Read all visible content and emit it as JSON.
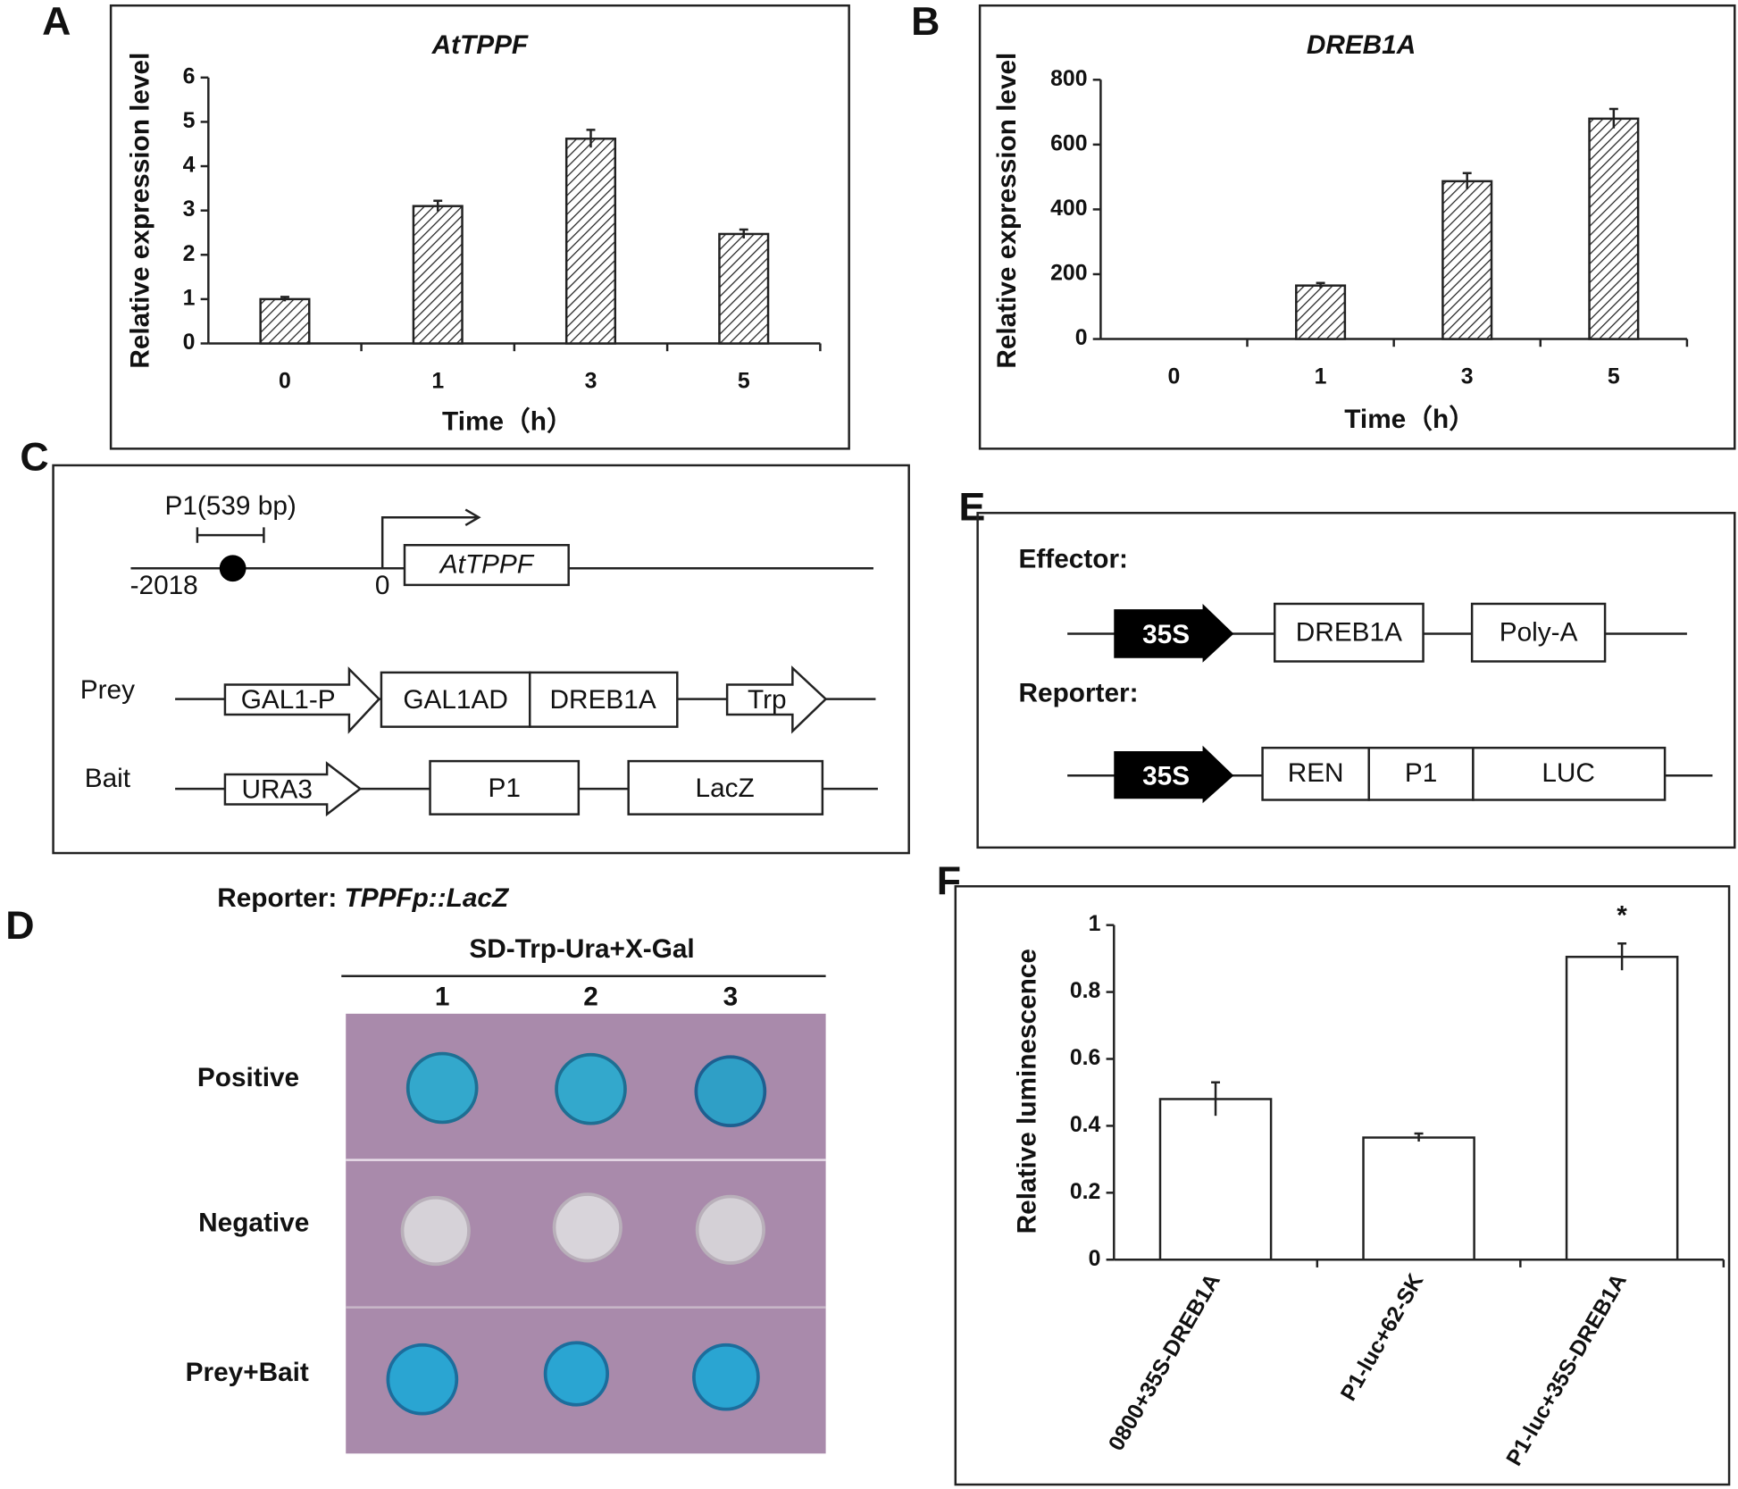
{
  "chart_data": [
    {
      "type": "bar",
      "label": "A",
      "title": "AtTPPF",
      "x_label": "Time（h）",
      "y_label": "Relative expression level",
      "categories": [
        "0",
        "1",
        "3",
        "5"
      ],
      "values": [
        1.0,
        3.1,
        4.62,
        2.47
      ],
      "errors": [
        0.05,
        0.12,
        0.2,
        0.1
      ],
      "color": "#ffffff",
      "hatch": true,
      "ylim": [
        0,
        6
      ],
      "yticks": [
        0,
        1,
        2,
        3,
        4,
        5,
        6
      ]
    },
    {
      "type": "bar",
      "label": "B",
      "title": "DREB1A",
      "x_label": "Time（h）",
      "y_label": "Relative expression level",
      "categories": [
        "0",
        "1",
        "3",
        "5"
      ],
      "values": [
        0,
        165,
        487,
        680
      ],
      "errors": [
        0,
        8,
        25,
        30
      ],
      "color": "#ffffff",
      "hatch": true,
      "ylim": [
        0,
        800
      ],
      "yticks": [
        0,
        200,
        400,
        600,
        800
      ]
    },
    {
      "type": "bar",
      "label": "F",
      "y_label": "Relative luminescence",
      "categories": [
        "0800+35S-DREB1A",
        "P1-luc+62-SK",
        "P1-luc+35S-DREB1A"
      ],
      "values": [
        0.48,
        0.365,
        0.905
      ],
      "errors": [
        0.05,
        0.012,
        0.04
      ],
      "color": "#ffffff",
      "hatch": false,
      "ylim": [
        0,
        1
      ],
      "yticks": [
        0,
        0.2,
        0.4,
        0.6,
        0.8,
        1
      ],
      "annotations": [
        {
          "text": "*",
          "category": "P1-luc+35S-DREB1A"
        }
      ]
    }
  ],
  "diagram_c": {
    "label": "C",
    "fragment": "P1(539 bp)",
    "start": "-2018",
    "tss": "0",
    "gene": "AtTPPF",
    "prey": {
      "label": "Prey",
      "elements": [
        "GAL1-P",
        "GAL1AD",
        "DREB1A",
        "Trp"
      ]
    },
    "bait": {
      "label": "Bait",
      "elements": [
        "URA3",
        "P1",
        "LacZ"
      ]
    }
  },
  "panel_d": {
    "label": "D",
    "reporter_prefix": "Reporter: ",
    "reporter_construct": "TPPFp::LacZ",
    "medium": "SD-Trp-Ura+X-Gal",
    "columns": [
      "1",
      "2",
      "3"
    ],
    "rows": [
      "Positive",
      "Negative",
      "Prey+Bait"
    ]
  },
  "diagram_e": {
    "label": "E",
    "effector": {
      "label": "Effector:",
      "elements": [
        "35S",
        "DREB1A",
        "Poly-A"
      ]
    },
    "reporter": {
      "label": "Reporter:",
      "elements": [
        "35S",
        "REN",
        "P1",
        "LUC"
      ]
    }
  }
}
